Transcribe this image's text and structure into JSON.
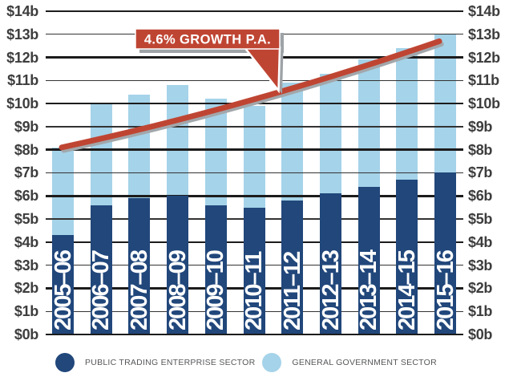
{
  "chart_data": {
    "type": "bar",
    "stacked": true,
    "categories": [
      "2005–06",
      "2006–07",
      "2007–08",
      "2008–09",
      "2009–10",
      "2010–11",
      "2011–12",
      "2012–13",
      "2013–14",
      "2014–15",
      "2015–16"
    ],
    "series": [
      {
        "name": "PUBLIC TRADING ENTERPRISE SECTOR",
        "color": "#21477B",
        "values": [
          4.3,
          5.6,
          5.9,
          6.0,
          5.6,
          5.5,
          5.8,
          6.1,
          6.4,
          6.7,
          7.0
        ]
      },
      {
        "name": "GENERAL GOVERNMENT SECTOR",
        "color": "#A5D3E9",
        "values": [
          3.8,
          4.4,
          4.5,
          4.8,
          4.6,
          4.4,
          5.1,
          5.2,
          5.5,
          5.7,
          6.0
        ]
      }
    ],
    "totals": [
      8.1,
      10.0,
      10.4,
      10.8,
      10.2,
      9.9,
      10.9,
      11.3,
      11.9,
      12.4,
      13.0
    ],
    "y_axis": {
      "min": 0,
      "max": 14,
      "step": 1,
      "unit_prefix": "$",
      "unit_suffix": "b",
      "sides": "both",
      "ticks": [
        "$0b",
        "$1b",
        "$2b",
        "$3b",
        "$4b",
        "$5b",
        "$6b",
        "$7b",
        "$8b",
        "$9b",
        "$10b",
        "$11b",
        "$12b",
        "$13b",
        "$14b"
      ]
    },
    "grid": true,
    "legend_position": "bottom",
    "trend_line": {
      "label": "4.6% GROWTH P.A.",
      "start_value": 8.1,
      "end_value": 12.7,
      "color": "#BF4533",
      "shadow_color": "#A2A7AB"
    }
  },
  "annotation": {
    "label": "4.6% GROWTH P.A."
  },
  "legend": {
    "items": [
      {
        "label": "PUBLIC TRADING ENTERPRISE SECTOR",
        "color": "#21477B"
      },
      {
        "label": "GENERAL GOVERNMENT SECTOR",
        "color": "#A5D3E9"
      }
    ]
  },
  "colors": {
    "pte_bar": "#21477B",
    "gg_bar": "#A5D3E9",
    "trend_red": "#BF4533",
    "shadow_gray": "#9EA3A7",
    "grid_major": "#1C1C1C",
    "grid_minor": "#333333",
    "tick_text": "#3D3D3E",
    "legend_text": "#57585A",
    "callout_text": "#FFFFFF"
  }
}
